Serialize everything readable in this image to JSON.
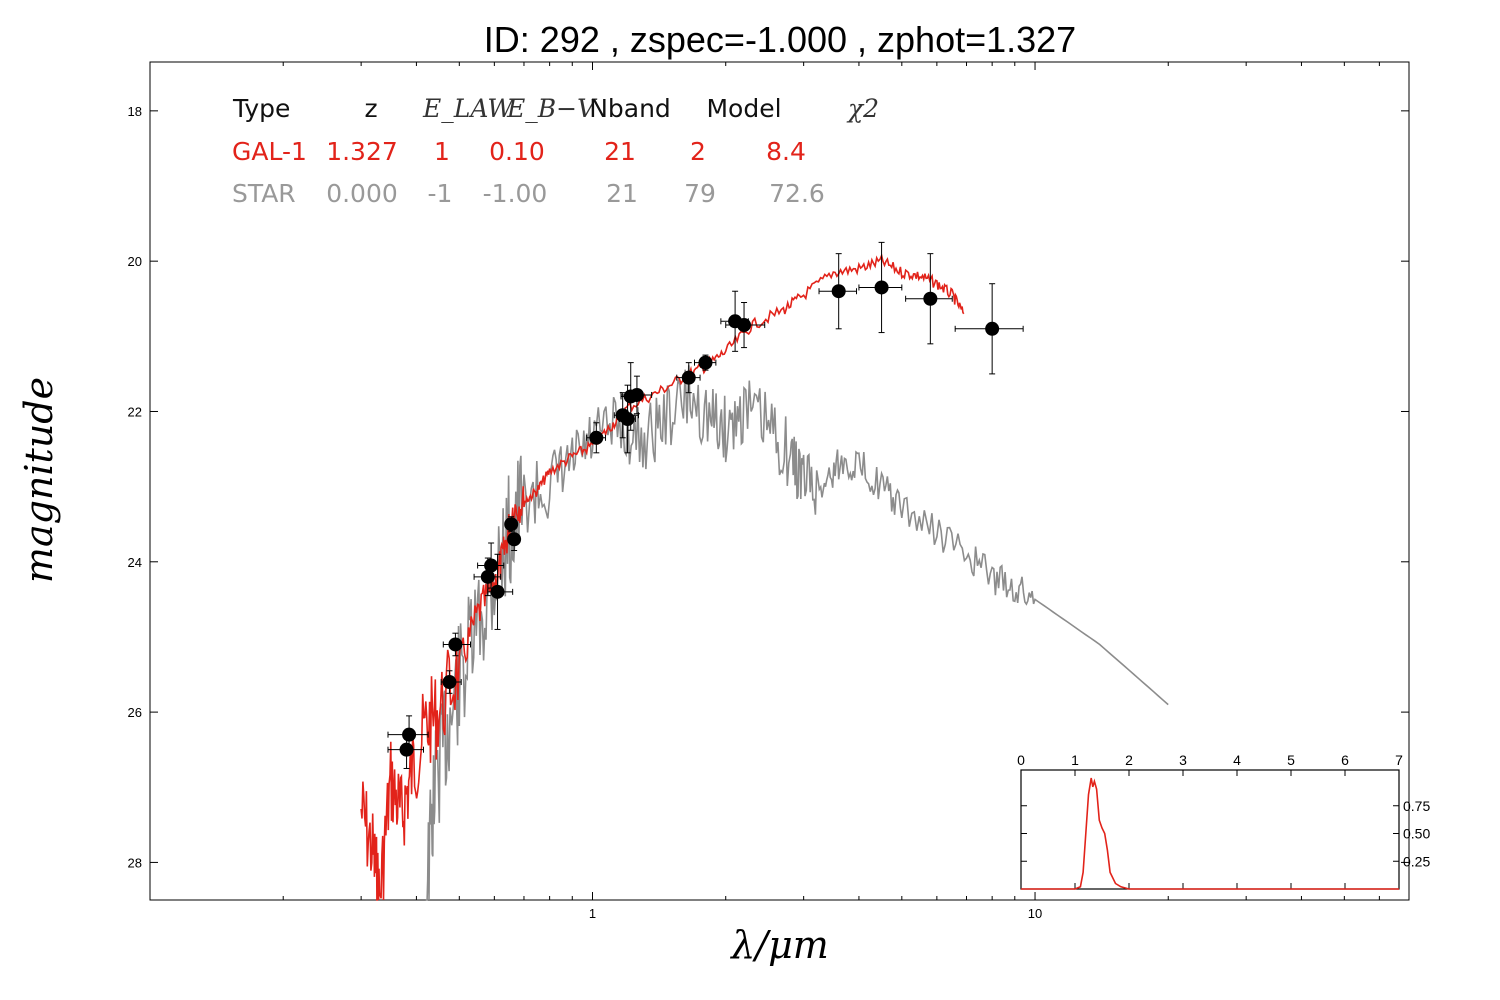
{
  "chart_data": {
    "type": "scatter",
    "title": "ID:  292   , zspec=-1.000 , zphot=1.327",
    "xlabel": "λ/μm",
    "ylabel": "magnitude",
    "xscale": "log",
    "xlim": [
      0.1,
      70
    ],
    "ylim": [
      28.5,
      17.35
    ],
    "y_inverted": true,
    "x_ticks": [
      1,
      10
    ],
    "y_ticks": [
      18,
      20,
      22,
      24,
      26,
      28
    ],
    "grid": false,
    "colors": {
      "galaxy": "#e2231a",
      "star": "#8c8c8c",
      "points": "#000000"
    },
    "table": {
      "headers": [
        "Type",
        "z",
        "E_LAW",
        "E_B−V",
        "Nband",
        "Model",
        "χ2"
      ],
      "rows": [
        {
          "type": "GAL-1",
          "z": "1.327",
          "e_law": "1",
          "e_bv": "0.10",
          "nband": "21",
          "model": "2",
          "chi2": "8.4"
        },
        {
          "type": "STAR",
          "z": "0.000",
          "e_law": "-1",
          "e_bv": "-1.00",
          "nband": "21",
          "model": "79",
          "chi2": "72.6"
        }
      ]
    },
    "photometry": [
      {
        "x": 0.38,
        "y": 26.5,
        "xerr_lo": 0.035,
        "xerr_hi": 0.035,
        "yerr": 0.25
      },
      {
        "x": 0.385,
        "y": 26.3,
        "xerr_lo": 0.04,
        "xerr_hi": 0.04,
        "yerr": 0.25
      },
      {
        "x": 0.475,
        "y": 25.6,
        "xerr_lo": 0.02,
        "xerr_hi": 0.03,
        "yerr": 0.15
      },
      {
        "x": 0.49,
        "y": 25.1,
        "xerr_lo": 0.03,
        "xerr_hi": 0.04,
        "yerr": 0.15
      },
      {
        "x": 0.58,
        "y": 24.2,
        "xerr_lo": 0.04,
        "xerr_hi": 0.04,
        "yerr": 0.25
      },
      {
        "x": 0.59,
        "y": 24.05,
        "xerr_lo": 0.04,
        "xerr_hi": 0.04,
        "yerr": 0.3
      },
      {
        "x": 0.61,
        "y": 24.4,
        "xerr_lo": 0.03,
        "xerr_hi": 0.05,
        "yerr": 0.5
      },
      {
        "x": 0.655,
        "y": 23.5,
        "xerr_lo": 0.015,
        "xerr_hi": 0.015,
        "yerr": 0.1
      },
      {
        "x": 0.665,
        "y": 23.7,
        "xerr_lo": 0.02,
        "xerr_hi": 0.02,
        "yerr": 0.15
      },
      {
        "x": 1.02,
        "y": 22.35,
        "xerr_lo": 0.05,
        "xerr_hi": 0.05,
        "yerr": 0.2
      },
      {
        "x": 1.17,
        "y": 22.05,
        "xerr_lo": 0.05,
        "xerr_hi": 0.1,
        "yerr": 0.3
      },
      {
        "x": 1.2,
        "y": 22.1,
        "xerr_lo": 0.05,
        "xerr_hi": 0.05,
        "yerr": 0.45
      },
      {
        "x": 1.22,
        "y": 21.8,
        "xerr_lo": 0.06,
        "xerr_hi": 0.06,
        "yerr": 0.45
      },
      {
        "x": 1.26,
        "y": 21.78,
        "xerr_lo": 0.1,
        "xerr_hi": 0.1,
        "yerr": 0.25
      },
      {
        "x": 1.65,
        "y": 21.55,
        "xerr_lo": 0.1,
        "xerr_hi": 0.1,
        "yerr": 0.2
      },
      {
        "x": 1.8,
        "y": 21.35,
        "xerr_lo": 0.1,
        "xerr_hi": 0.1,
        "yerr": 0.1
      },
      {
        "x": 2.1,
        "y": 20.8,
        "xerr_lo": 0.15,
        "xerr_hi": 0.15,
        "yerr": 0.4
      },
      {
        "x": 2.2,
        "y": 20.85,
        "xerr_lo": 0.2,
        "xerr_hi": 0.25,
        "yerr": 0.3
      },
      {
        "x": 3.6,
        "y": 20.4,
        "xerr_lo": 0.35,
        "xerr_hi": 0.35,
        "yerr": 0.5
      },
      {
        "x": 4.5,
        "y": 20.35,
        "xerr_lo": 0.5,
        "xerr_hi": 0.5,
        "yerr": 0.6
      },
      {
        "x": 5.8,
        "y": 20.5,
        "xerr_lo": 0.7,
        "xerr_hi": 0.7,
        "yerr": 0.6
      },
      {
        "x": 8.0,
        "y": 20.9,
        "xerr_lo": 1.4,
        "xerr_hi": 1.4,
        "yerr": 0.6
      }
    ],
    "galaxy_sed_nodes": [
      [
        0.3,
        27.3
      ],
      [
        0.32,
        27.9
      ],
      [
        0.33,
        28.5
      ],
      [
        0.35,
        26.9
      ],
      [
        0.37,
        27.4
      ],
      [
        0.39,
        26.8
      ],
      [
        0.42,
        26.2
      ],
      [
        0.45,
        26.0
      ],
      [
        0.5,
        25.4
      ],
      [
        0.55,
        24.7
      ],
      [
        0.6,
        24.3
      ],
      [
        0.63,
        23.9
      ],
      [
        0.66,
        23.3
      ],
      [
        0.7,
        23.2
      ],
      [
        0.75,
        23.05
      ],
      [
        0.8,
        22.8
      ],
      [
        0.9,
        22.6
      ],
      [
        1.0,
        22.45
      ],
      [
        1.1,
        22.2
      ],
      [
        1.2,
        21.95
      ],
      [
        1.4,
        21.75
      ],
      [
        1.6,
        21.55
      ],
      [
        1.8,
        21.4
      ],
      [
        2.0,
        21.2
      ],
      [
        2.3,
        20.85
      ],
      [
        2.7,
        20.65
      ],
      [
        3.0,
        20.45
      ],
      [
        3.5,
        20.15
      ],
      [
        4.0,
        20.1
      ],
      [
        4.5,
        20.0
      ],
      [
        5.0,
        20.15
      ],
      [
        5.5,
        20.2
      ],
      [
        6.0,
        20.3
      ],
      [
        6.5,
        20.45
      ],
      [
        6.9,
        20.7
      ]
    ],
    "star_sed_nodes": [
      [
        0.42,
        28.5
      ],
      [
        0.44,
        27.0
      ],
      [
        0.47,
        26.2
      ],
      [
        0.5,
        25.6
      ],
      [
        0.55,
        24.9
      ],
      [
        0.6,
        24.2
      ],
      [
        0.65,
        23.6
      ],
      [
        0.7,
        23.2
      ],
      [
        0.8,
        23.0
      ],
      [
        0.9,
        22.7
      ],
      [
        1.0,
        22.4
      ],
      [
        1.15,
        22.2
      ],
      [
        1.3,
        22.4
      ],
      [
        1.45,
        22.1
      ],
      [
        1.65,
        21.8
      ],
      [
        1.85,
        22.1
      ],
      [
        2.0,
        22.25
      ],
      [
        2.2,
        21.95
      ],
      [
        2.5,
        22.2
      ],
      [
        2.8,
        22.6
      ],
      [
        3.0,
        22.9
      ],
      [
        3.3,
        23.0
      ],
      [
        3.6,
        22.7
      ],
      [
        4.0,
        22.7
      ],
      [
        4.5,
        23.0
      ],
      [
        5.0,
        23.3
      ],
      [
        6.0,
        23.6
      ],
      [
        7.0,
        23.9
      ],
      [
        8.0,
        24.2
      ],
      [
        9.0,
        24.35
      ],
      [
        10.0,
        24.5
      ],
      [
        14.0,
        25.1
      ],
      [
        20.0,
        25.9
      ]
    ],
    "inset": {
      "xlabel": "",
      "ylabel": "",
      "xlim": [
        0,
        7
      ],
      "ylim": [
        0,
        1.0
      ],
      "x_ticks": [
        0,
        1,
        2,
        3,
        4,
        5,
        6,
        7
      ],
      "y_ticks": [
        0.25,
        0.5,
        0.75
      ],
      "pdz": [
        [
          0.0,
          0.0
        ],
        [
          1.0,
          0.0
        ],
        [
          1.1,
          0.02
        ],
        [
          1.15,
          0.15
        ],
        [
          1.2,
          0.5
        ],
        [
          1.25,
          0.85
        ],
        [
          1.3,
          1.0
        ],
        [
          1.33,
          0.92
        ],
        [
          1.36,
          0.97
        ],
        [
          1.4,
          0.9
        ],
        [
          1.45,
          0.62
        ],
        [
          1.5,
          0.55
        ],
        [
          1.55,
          0.5
        ],
        [
          1.6,
          0.35
        ],
        [
          1.65,
          0.15
        ],
        [
          1.75,
          0.05
        ],
        [
          1.85,
          0.02
        ],
        [
          2.0,
          0.0
        ],
        [
          7.0,
          0.0
        ]
      ]
    }
  }
}
